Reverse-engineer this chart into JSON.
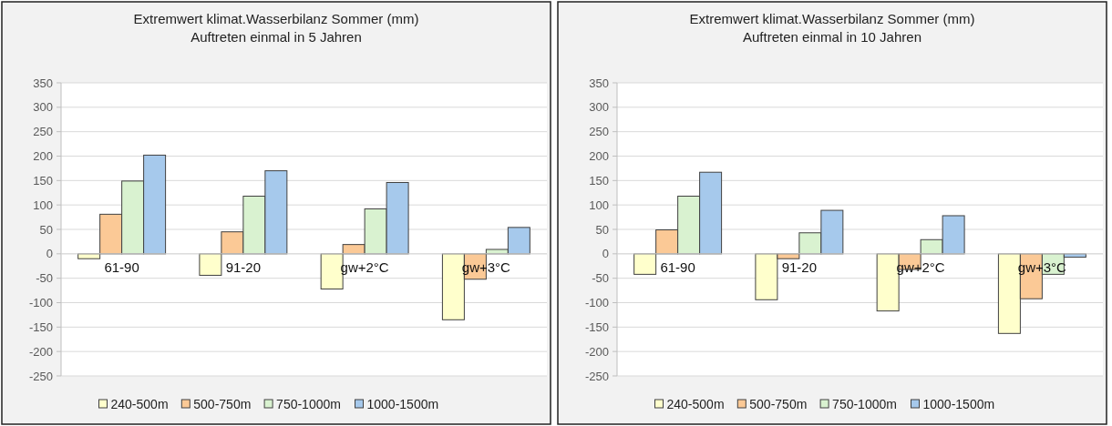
{
  "chart_data": [
    {
      "type": "bar",
      "title": "Extremwert klimat.Wasserbilanz Sommer (mm)",
      "subtitle": "Auftreten einmal in 5 Jahren",
      "categories": [
        "61-90",
        "91-20",
        "gw+2°C",
        "gw+3°C"
      ],
      "series": [
        {
          "name": "240-500m",
          "color": "#ffffcc",
          "values": [
            -10,
            -44,
            -72,
            -135
          ]
        },
        {
          "name": "500-750m",
          "color": "#fbc996",
          "values": [
            81,
            45,
            19,
            -52
          ]
        },
        {
          "name": "750-1000m",
          "color": "#d9f2d0",
          "values": [
            149,
            118,
            92,
            9
          ]
        },
        {
          "name": "1000-1500m",
          "color": "#a6c9ec",
          "values": [
            202,
            170,
            146,
            54
          ]
        }
      ],
      "ylim": [
        -250,
        350
      ],
      "yticks": [
        -250,
        -200,
        -150,
        -100,
        -50,
        0,
        50,
        100,
        150,
        200,
        250,
        300,
        350
      ],
      "grid": "y",
      "legend": "bottom"
    },
    {
      "type": "bar",
      "title": "Extremwert klimat.Wasserbilanz Sommer (mm)",
      "subtitle": "Auftreten einmal in 10 Jahren",
      "categories": [
        "61-90",
        "91-20",
        "gw+2°C",
        "gw+3°C"
      ],
      "series": [
        {
          "name": "240-500m",
          "color": "#ffffcc",
          "values": [
            -42,
            -94,
            -117,
            -163
          ]
        },
        {
          "name": "500-750m",
          "color": "#fbc996",
          "values": [
            49,
            -10,
            -32,
            -92
          ]
        },
        {
          "name": "750-1000m",
          "color": "#d9f2d0",
          "values": [
            118,
            43,
            29,
            -42
          ]
        },
        {
          "name": "1000-1500m",
          "color": "#a6c9ec",
          "values": [
            167,
            89,
            78,
            -7
          ]
        }
      ],
      "ylim": [
        -250,
        350
      ],
      "yticks": [
        -250,
        -200,
        -150,
        -100,
        -50,
        0,
        50,
        100,
        150,
        200,
        250,
        300,
        350
      ],
      "grid": "y",
      "legend": "bottom"
    }
  ]
}
